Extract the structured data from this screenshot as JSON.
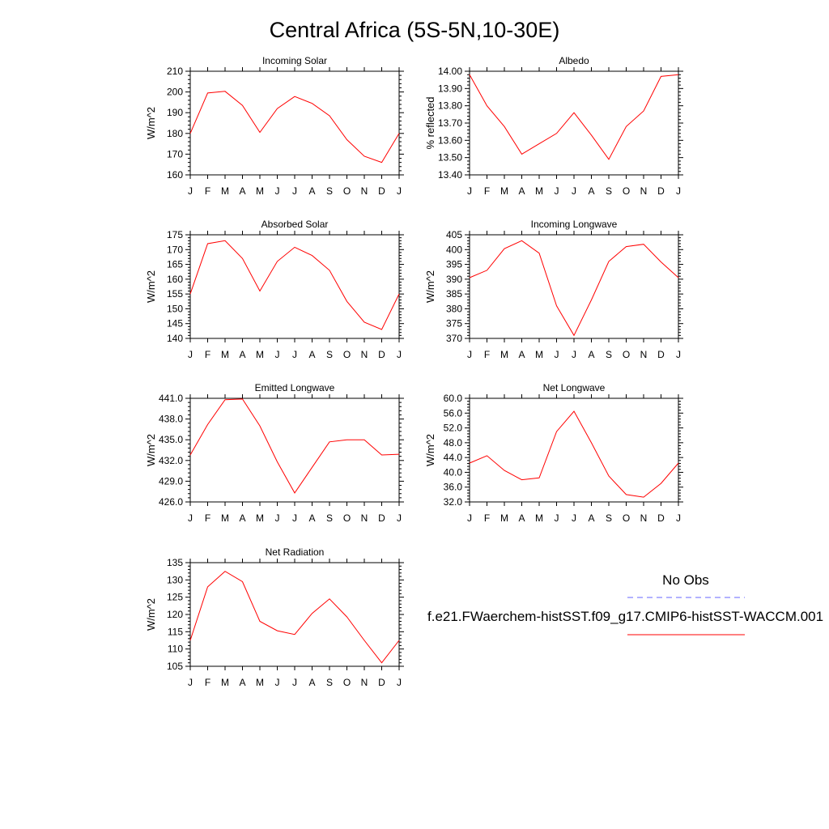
{
  "title": "Central Africa (5S-5N,10-30E)",
  "months": [
    "J",
    "F",
    "M",
    "A",
    "M",
    "J",
    "J",
    "A",
    "S",
    "O",
    "N",
    "D",
    "J"
  ],
  "legend": {
    "obs_label": "No Obs",
    "model_label": "f.e21.FWaerchem-histSST.f09_g17.CMIP6-histSST-WACCM.001",
    "obs_color": "#6666ff",
    "model_color": "#ff0000"
  },
  "chart_data": [
    {
      "type": "line",
      "title": "Incoming Solar",
      "ylabel": "W/m^2",
      "ylim": [
        160,
        210
      ],
      "yticks": [
        "160",
        "170",
        "180",
        "190",
        "200",
        "210"
      ],
      "series": [
        {
          "name": "f.e21.FWaerchem-histSST.f09_g17.CMIP6-histSST-WACCM.001",
          "values": [
            180.0,
            199.5,
            200.3,
            193.5,
            180.5,
            192.0,
            197.8,
            194.5,
            188.5,
            177.0,
            169.0,
            166.0,
            180.0
          ]
        }
      ]
    },
    {
      "type": "line",
      "title": "Albedo",
      "ylabel": "% reflected",
      "ylim": [
        13.4,
        14.0
      ],
      "yticks": [
        "13.40",
        "13.50",
        "13.60",
        "13.70",
        "13.80",
        "13.90",
        "14.00"
      ],
      "series": [
        {
          "name": "f.e21.FWaerchem-histSST.f09_g17.CMIP6-histSST-WACCM.001",
          "values": [
            13.98,
            13.8,
            13.68,
            13.52,
            13.58,
            13.64,
            13.76,
            13.63,
            13.49,
            13.68,
            13.77,
            13.97,
            13.98
          ]
        }
      ]
    },
    {
      "type": "line",
      "title": "Absorbed Solar",
      "ylabel": "W/m^2",
      "ylim": [
        140,
        175
      ],
      "yticks": [
        "140",
        "145",
        "150",
        "155",
        "160",
        "165",
        "170",
        "175"
      ],
      "series": [
        {
          "name": "f.e21.FWaerchem-histSST.f09_g17.CMIP6-histSST-WACCM.001",
          "values": [
            155.0,
            172.0,
            173.0,
            167.0,
            156.0,
            166.0,
            170.8,
            168.0,
            163.0,
            152.5,
            145.5,
            143.0,
            155.0
          ]
        }
      ]
    },
    {
      "type": "line",
      "title": "Incoming Longwave",
      "ylabel": "W/m^2",
      "ylim": [
        370,
        405
      ],
      "yticks": [
        "370",
        "375",
        "380",
        "385",
        "390",
        "395",
        "400",
        "405"
      ],
      "series": [
        {
          "name": "f.e21.FWaerchem-histSST.f09_g17.CMIP6-histSST-WACCM.001",
          "values": [
            390.5,
            393.0,
            400.3,
            403.0,
            398.8,
            381.0,
            371.0,
            383.0,
            396.0,
            401.0,
            401.8,
            395.8,
            390.5
          ]
        }
      ]
    },
    {
      "type": "line",
      "title": "Emitted Longwave",
      "ylabel": "W/m^2",
      "ylim": [
        426.0,
        441.0
      ],
      "yticks": [
        "426.0",
        "429.0",
        "432.0",
        "435.0",
        "438.0",
        "441.0"
      ],
      "series": [
        {
          "name": "f.e21.FWaerchem-histSST.f09_g17.CMIP6-histSST-WACCM.001",
          "values": [
            432.8,
            437.2,
            440.8,
            440.9,
            437.0,
            431.8,
            427.3,
            431.0,
            434.7,
            435.0,
            435.0,
            432.8,
            432.9
          ]
        }
      ]
    },
    {
      "type": "line",
      "title": "Net Longwave",
      "ylabel": "W/m^2",
      "ylim": [
        32.0,
        60.0
      ],
      "yticks": [
        "32.0",
        "36.0",
        "40.0",
        "44.0",
        "48.0",
        "52.0",
        "56.0",
        "60.0"
      ],
      "series": [
        {
          "name": "f.e21.FWaerchem-histSST.f09_g17.CMIP6-histSST-WACCM.001",
          "values": [
            42.5,
            44.5,
            40.5,
            38.0,
            38.5,
            51.0,
            56.5,
            48.0,
            39.0,
            34.0,
            33.3,
            37.0,
            42.5
          ]
        }
      ]
    },
    {
      "type": "line",
      "title": "Net Radiation",
      "ylabel": "W/m^2",
      "ylim": [
        105,
        135
      ],
      "yticks": [
        "105",
        "110",
        "115",
        "120",
        "125",
        "130",
        "135"
      ],
      "series": [
        {
          "name": "f.e21.FWaerchem-histSST.f09_g17.CMIP6-histSST-WACCM.001",
          "values": [
            112.5,
            128.0,
            132.5,
            129.5,
            118.0,
            115.3,
            114.2,
            120.3,
            124.5,
            119.3,
            112.5,
            106.0,
            112.5
          ]
        }
      ]
    }
  ]
}
